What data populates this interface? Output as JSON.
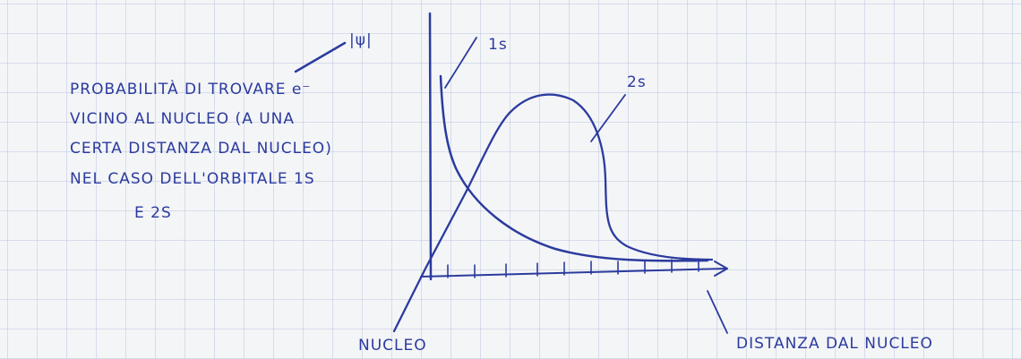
{
  "psi_label": "|ψ|",
  "note": {
    "lines": [
      "PROBABILITÀ DI TROVARE e⁻",
      "VICINO AL NUCLEO (A UNA",
      "CERTA DISTANZA DAL NUCLEO)",
      "NEL CASO DELL'ORBITALE 1S",
      "E 2S"
    ]
  },
  "curves": {
    "1s": "1s",
    "2s": "2s"
  },
  "axis": {
    "origin": "NUCLEO",
    "x": "DISTANZA DAL NUCLEO"
  }
}
